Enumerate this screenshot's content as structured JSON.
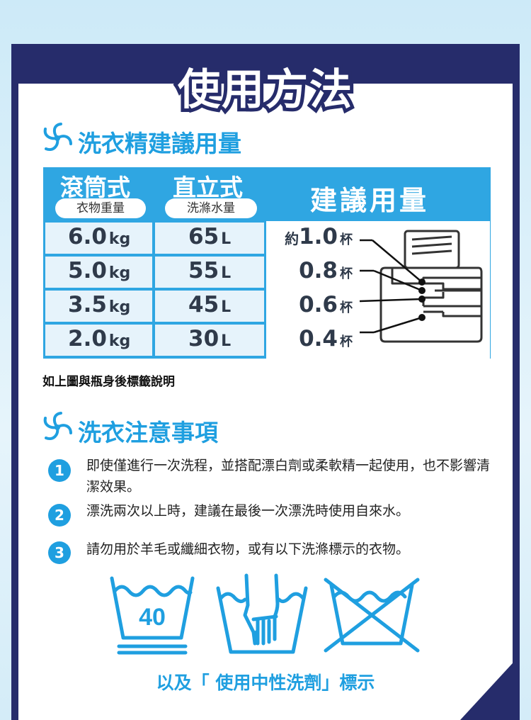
{
  "title": "使用方法",
  "section1": {
    "title": "洗衣精建議用量"
  },
  "table": {
    "col1_title": "滾筒式",
    "col1_sub": "衣物重量",
    "col2_title": "直立式",
    "col2_sub": "洗滌水量",
    "col3_title": "建議用量",
    "rows": [
      {
        "weight": "6.0",
        "weight_unit": "kg",
        "water": "65",
        "water_unit": "L",
        "prefix": "約",
        "dose": "1.0",
        "dose_unit": "杯"
      },
      {
        "weight": "5.0",
        "weight_unit": "kg",
        "water": "55",
        "water_unit": "L",
        "prefix": "",
        "dose": "0.8",
        "dose_unit": "杯"
      },
      {
        "weight": "3.5",
        "weight_unit": "kg",
        "water": "45",
        "water_unit": "L",
        "prefix": "",
        "dose": "0.6",
        "dose_unit": "杯"
      },
      {
        "weight": "2.0",
        "weight_unit": "kg",
        "water": "30",
        "water_unit": "L",
        "prefix": "",
        "dose": "0.4",
        "dose_unit": "杯"
      }
    ]
  },
  "note": "如上圖與瓶身後標籤說明",
  "section2": {
    "title": "洗衣注意事項"
  },
  "items": [
    {
      "num": "1",
      "text": "即使僅進行一次洗程，並搭配漂白劑或柔軟精一起使用，也不影響清潔效果。"
    },
    {
      "num": "2",
      "text": "漂洗兩次以上時，建議在最後一次漂洗時使用自來水。"
    },
    {
      "num": "3",
      "text": "請勿用於羊毛或纖細衣物，或有以下洗滌標示的衣物。"
    }
  ],
  "icons": {
    "wash_temp": "40",
    "wash_icon": "wash-40-icon",
    "hand_icon": "hand-wash-icon",
    "nowash_icon": "do-not-wash-icon"
  },
  "footer": "以及「 使用中性洗劑」標示",
  "colors": {
    "navy": "#262c6b",
    "blue": "#1f9fe0",
    "cell": "#e6f3fb"
  }
}
